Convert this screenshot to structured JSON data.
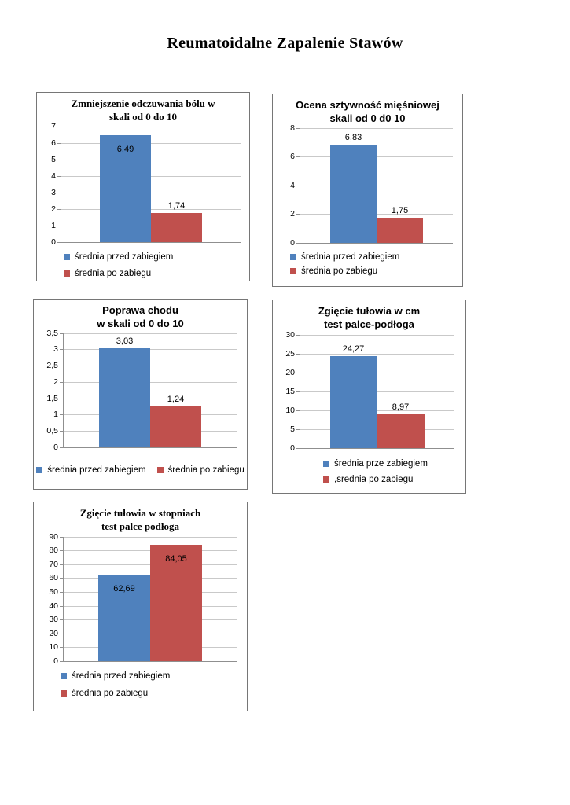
{
  "page": {
    "title": "Reumatoidalne Zapalenie Stawów",
    "background": "#ffffff"
  },
  "colors": {
    "series_before": "#4F81BD",
    "series_after": "#C0504D",
    "gridline": "#C9C9C9",
    "axis": "#8F8F8F",
    "frame_border": "#767676",
    "text": "#000000"
  },
  "chart_data": [
    {
      "type": "bar",
      "title": "Zmniejszenie odczuwania bólu w skali od 0 do 10",
      "title_lines": [
        "Zmniejszenie odczuwania bólu w",
        "skali od 0 do 10"
      ],
      "xlabel": "",
      "ylabel": "",
      "ylim": [
        0,
        7
      ],
      "ytick_values": [
        0,
        1,
        2,
        3,
        4,
        5,
        6,
        7
      ],
      "ytick_labels": [
        "0",
        "1",
        "2",
        "3",
        "4",
        "5",
        "6",
        "7"
      ],
      "grid": true,
      "legend_position": "bottom",
      "legend_layout": "stacked",
      "series": [
        {
          "name": "średnia przed zabiegiem",
          "value": 6.49,
          "label": "6,49",
          "color": "#4F81BD",
          "label_placement": "inside"
        },
        {
          "name": "średnia po zabiegu",
          "value": 1.74,
          "label": "1,74",
          "color": "#C0504D",
          "label_placement": "above"
        }
      ]
    },
    {
      "type": "bar",
      "title": "Ocena sztywność mięśniowej skali od 0 d0 10",
      "title_lines": [
        "Ocena sztywność mięśniowej",
        "skali od 0 d0 10"
      ],
      "xlabel": "",
      "ylabel": "",
      "ylim": [
        0,
        8
      ],
      "ytick_values": [
        0,
        2,
        4,
        6,
        8
      ],
      "ytick_labels": [
        "0",
        "2",
        "4",
        "6",
        "8"
      ],
      "grid": true,
      "legend_position": "bottom",
      "legend_layout": "stacked",
      "series": [
        {
          "name": "średnia przed zabiegiem",
          "value": 6.83,
          "label": "6,83",
          "color": "#4F81BD",
          "label_placement": "above"
        },
        {
          "name": "średnia po zabiegu",
          "value": 1.75,
          "label": "1,75",
          "color": "#C0504D",
          "label_placement": "above"
        }
      ]
    },
    {
      "type": "bar",
      "title": "Poprawa chodu w skali od 0 do 10",
      "title_lines": [
        "Poprawa chodu",
        "w skali od 0 do 10"
      ],
      "xlabel": "",
      "ylabel": "",
      "ylim": [
        0,
        3.5
      ],
      "ytick_values": [
        0,
        0.5,
        1,
        1.5,
        2,
        2.5,
        3,
        3.5
      ],
      "ytick_labels": [
        "0",
        "0,5",
        "1",
        "1,5",
        "2",
        "2,5",
        "3",
        "3,5"
      ],
      "grid": true,
      "legend_position": "bottom",
      "legend_layout": "row",
      "series": [
        {
          "name": "średnia przed zabiegiem",
          "value": 3.03,
          "label": "3,03",
          "color": "#4F81BD",
          "label_placement": "above"
        },
        {
          "name": "średnia po zabiegu",
          "value": 1.24,
          "label": "1,24",
          "color": "#C0504D",
          "label_placement": "above"
        }
      ]
    },
    {
      "type": "bar",
      "title": "Zgięcie tułowia w cm test palce-podłoga",
      "title_lines": [
        "Zgięcie tułowia w cm",
        "test palce-podłoga"
      ],
      "xlabel": "",
      "ylabel": "",
      "ylim": [
        0,
        30
      ],
      "ytick_values": [
        0,
        5,
        10,
        15,
        20,
        25,
        30
      ],
      "ytick_labels": [
        "0",
        "5",
        "10",
        "15",
        "20",
        "25",
        "30"
      ],
      "grid": true,
      "legend_position": "bottom",
      "legend_layout": "stacked",
      "series": [
        {
          "name": "średnia prze zabiegiem",
          "value": 24.27,
          "label": "24,27",
          "color": "#4F81BD",
          "label_placement": "above"
        },
        {
          "name": ",srednia po zabiegu",
          "value": 8.97,
          "label": "8,97",
          "color": "#C0504D",
          "label_placement": "above"
        }
      ]
    },
    {
      "type": "bar",
      "title": "Zgięcie tułowia w stopniach test palce podłoga",
      "title_lines": [
        "Zgięcie tułowia w stopniach",
        "test palce podłoga"
      ],
      "xlabel": "",
      "ylabel": "",
      "ylim": [
        0,
        90
      ],
      "ytick_values": [
        0,
        10,
        20,
        30,
        40,
        50,
        60,
        70,
        80,
        90
      ],
      "ytick_labels": [
        "0",
        "10",
        "20",
        "30",
        "40",
        "50",
        "60",
        "70",
        "80",
        "90"
      ],
      "grid": true,
      "legend_position": "bottom",
      "legend_layout": "stacked",
      "series": [
        {
          "name": "średnia przed zabiegiem",
          "value": 62.69,
          "label": "62,69",
          "color": "#4F81BD",
          "label_placement": "inside"
        },
        {
          "name": "średnia po zabiegu",
          "value": 84.05,
          "label": "84,05",
          "color": "#C0504D",
          "label_placement": "inside"
        }
      ]
    }
  ]
}
